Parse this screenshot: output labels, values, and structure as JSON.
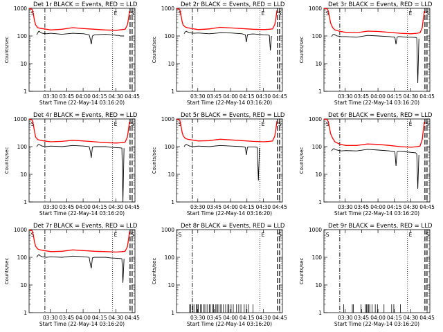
{
  "chart_data": [
    {
      "type": "line",
      "title": "Det 1r BLACK = Events, RED = LLD",
      "xlabel": "Start Time (22-May-14 03:16:20)",
      "ylabel": "Counts/sec",
      "xticks": [
        "03:30",
        "03:45",
        "04:00",
        "04:15",
        "04:30",
        "04:45"
      ],
      "yticks": [
        "1",
        "10",
        "100",
        "1000"
      ],
      "ylim": [
        1,
        1000
      ],
      "yscale": "log",
      "xlim_min": [
        0,
        97
      ],
      "markers": [
        {
          "label": "S",
          "x": 0.5
        },
        {
          "label": "E",
          "x": 76.5
        },
        {
          "label": "S",
          "x": 92.5
        }
      ],
      "series": [
        {
          "name": "RED = LLD",
          "color": "#ff0000",
          "x": [
            0,
            3,
            4,
            5,
            6,
            8,
            10,
            14,
            20,
            30,
            40,
            50,
            60,
            70,
            80,
            85,
            88,
            90,
            91,
            92
          ],
          "y": [
            1000,
            900,
            600,
            350,
            250,
            200,
            190,
            180,
            165,
            175,
            200,
            185,
            175,
            165,
            160,
            170,
            175,
            250,
            400,
            800
          ]
        },
        {
          "name": "BLACK = Events",
          "color": "#000000",
          "x": [
            7,
            8,
            9,
            10,
            12,
            16,
            20,
            30,
            40,
            50,
            55,
            56,
            57,
            58,
            60,
            70,
            75,
            78,
            80,
            82,
            83,
            84,
            85,
            86,
            87
          ],
          "y": [
            110,
            130,
            150,
            140,
            125,
            120,
            125,
            115,
            125,
            120,
            110,
            80,
            50,
            100,
            110,
            115,
            110,
            108,
            105,
            105,
            102,
            100,
            100,
            100,
            100
          ]
        }
      ]
    },
    {
      "type": "line",
      "title": "Det 2r BLACK = Events, RED = LLD",
      "xlabel": "Start Time (22-May-14 03:16:20)",
      "ylabel": "Counts/sec",
      "xticks": [
        "03:30",
        "03:45",
        "04:00",
        "04:15",
        "04:30",
        "04:45"
      ],
      "yticks": [
        "1",
        "10",
        "100",
        "1000"
      ],
      "ylim": [
        1,
        1000
      ],
      "yscale": "log",
      "xlim_min": [
        0,
        97
      ],
      "markers": [
        {
          "label": "S",
          "x": 0.5
        },
        {
          "label": "E",
          "x": 76.5
        },
        {
          "label": "S",
          "x": 92.5
        }
      ],
      "series": [
        {
          "name": "RED = LLD",
          "color": "#ff0000",
          "x": [
            0,
            3,
            4,
            5,
            6,
            8,
            10,
            14,
            20,
            30,
            40,
            50,
            60,
            70,
            80,
            85,
            88,
            90,
            91,
            92
          ],
          "y": [
            1000,
            900,
            600,
            350,
            250,
            210,
            200,
            185,
            170,
            180,
            205,
            195,
            185,
            175,
            170,
            175,
            180,
            260,
            420,
            850
          ]
        },
        {
          "name": "BLACK = Events",
          "color": "#000000",
          "x": [
            7,
            8,
            9,
            10,
            12,
            16,
            20,
            30,
            40,
            50,
            60,
            63,
            64,
            65,
            66,
            70,
            75,
            80,
            84,
            85,
            86,
            87
          ],
          "y": [
            120,
            140,
            150,
            140,
            130,
            125,
            128,
            120,
            130,
            128,
            120,
            110,
            60,
            110,
            115,
            118,
            115,
            110,
            108,
            105,
            30,
            100
          ]
        }
      ]
    },
    {
      "type": "line",
      "title": "Det 3r BLACK = Events, RED = LLD",
      "xlabel": "Start Time (22-May-14 03:16:20)",
      "ylabel": "Counts/sec",
      "xticks": [
        "03:30",
        "03:45",
        "04:00",
        "04:15",
        "04:30",
        "04:45"
      ],
      "yticks": [
        "1",
        "10",
        "100",
        "1000"
      ],
      "ylim": [
        1,
        1000
      ],
      "yscale": "log",
      "xlim_min": [
        0,
        97
      ],
      "markers": [
        {
          "label": "S",
          "x": 0.5
        },
        {
          "label": "E",
          "x": 76.5
        },
        {
          "label": "S",
          "x": 92.5
        }
      ],
      "series": [
        {
          "name": "RED = LLD",
          "color": "#ff0000",
          "x": [
            0,
            3,
            4,
            5,
            6,
            8,
            10,
            14,
            20,
            30,
            40,
            50,
            60,
            70,
            80,
            85,
            88,
            90,
            91,
            92
          ],
          "y": [
            1000,
            950,
            800,
            500,
            300,
            200,
            165,
            150,
            135,
            130,
            150,
            145,
            135,
            125,
            120,
            125,
            130,
            200,
            400,
            800
          ]
        },
        {
          "name": "BLACK = Events",
          "color": "#000000",
          "x": [
            7,
            8,
            9,
            10,
            12,
            16,
            20,
            30,
            40,
            50,
            60,
            65,
            66,
            67,
            68,
            70,
            75,
            80,
            84,
            85,
            86,
            87
          ],
          "y": [
            95,
            110,
            115,
            110,
            100,
            95,
            95,
            90,
            105,
            100,
            95,
            90,
            50,
            90,
            95,
            95,
            90,
            90,
            88,
            85,
            2,
            80
          ]
        }
      ]
    },
    {
      "type": "line",
      "title": "Det 4r BLACK = Events, RED = LLD",
      "xlabel": "Start Time (22-May-14 03:16:20)",
      "ylabel": "Counts/sec",
      "xticks": [
        "03:30",
        "03:45",
        "04:00",
        "04:15",
        "04:30",
        "04:45"
      ],
      "yticks": [
        "1",
        "10",
        "100",
        "1000"
      ],
      "ylim": [
        1,
        1000
      ],
      "yscale": "log",
      "xlim_min": [
        0,
        97
      ],
      "markers": [
        {
          "label": "S",
          "x": 0.5
        },
        {
          "label": "E",
          "x": 76.5
        },
        {
          "label": "S",
          "x": 92.5
        }
      ],
      "series": [
        {
          "name": "RED = LLD",
          "color": "#ff0000",
          "x": [
            0,
            3,
            4,
            5,
            6,
            8,
            10,
            14,
            20,
            30,
            40,
            50,
            60,
            70,
            80,
            85,
            88,
            90,
            91,
            92
          ],
          "y": [
            1000,
            900,
            600,
            350,
            220,
            180,
            170,
            160,
            150,
            155,
            170,
            160,
            150,
            140,
            135,
            140,
            145,
            220,
            400,
            800
          ]
        },
        {
          "name": "BLACK = Events",
          "color": "#000000",
          "x": [
            7,
            8,
            9,
            10,
            12,
            16,
            20,
            30,
            40,
            50,
            55,
            56,
            57,
            58,
            60,
            70,
            75,
            80,
            84,
            85,
            86,
            87
          ],
          "y": [
            100,
            115,
            120,
            115,
            105,
            100,
            105,
            100,
            110,
            105,
            100,
            70,
            40,
            95,
            100,
            100,
            95,
            92,
            90,
            88,
            1,
            88
          ]
        }
      ]
    },
    {
      "type": "line",
      "title": "Det 5r BLACK = Events, RED = LLD",
      "xlabel": "Start Time (22-May-14 03:16:20)",
      "ylabel": "Counts/sec",
      "xticks": [
        "03:30",
        "03:45",
        "04:00",
        "04:15",
        "04:30",
        "04:45"
      ],
      "yticks": [
        "1",
        "10",
        "100",
        "1000"
      ],
      "ylim": [
        1,
        1000
      ],
      "yscale": "log",
      "xlim_min": [
        0,
        97
      ],
      "markers": [
        {
          "label": "S",
          "x": 0.5
        },
        {
          "label": "E",
          "x": 76.5
        },
        {
          "label": "S",
          "x": 92.5
        }
      ],
      "series": [
        {
          "name": "RED = LLD",
          "color": "#ff0000",
          "x": [
            0,
            3,
            4,
            5,
            6,
            8,
            10,
            14,
            20,
            30,
            40,
            50,
            60,
            70,
            80,
            85,
            88,
            90,
            91,
            92
          ],
          "y": [
            1000,
            900,
            600,
            350,
            250,
            200,
            185,
            175,
            160,
            165,
            185,
            175,
            165,
            155,
            150,
            155,
            160,
            240,
            420,
            850
          ]
        },
        {
          "name": "BLACK = Events",
          "color": "#000000",
          "x": [
            7,
            8,
            9,
            10,
            12,
            16,
            20,
            30,
            40,
            50,
            60,
            63,
            64,
            65,
            66,
            70,
            74,
            75,
            76
          ],
          "y": [
            100,
            115,
            120,
            115,
            105,
            100,
            105,
            100,
            110,
            105,
            100,
            95,
            50,
            95,
            98,
            98,
            95,
            6,
            90
          ]
        }
      ]
    },
    {
      "type": "line",
      "title": "Det 6r BLACK = Events, RED = LLD",
      "xlabel": "Start Time (22-May-14 03:16:20)",
      "ylabel": "Counts/sec",
      "xticks": [
        "03:30",
        "03:45",
        "04:00",
        "04:15",
        "04:30",
        "04:45"
      ],
      "yticks": [
        "1",
        "10",
        "100",
        "1000"
      ],
      "ylim": [
        1,
        1000
      ],
      "yscale": "log",
      "xlim_min": [
        0,
        97
      ],
      "markers": [
        {
          "label": "S",
          "x": 0.5
        },
        {
          "label": "E",
          "x": 76.5
        },
        {
          "label": "S",
          "x": 92.5
        }
      ],
      "series": [
        {
          "name": "RED = LLD",
          "color": "#ff0000",
          "x": [
            0,
            3,
            4,
            5,
            6,
            8,
            10,
            14,
            20,
            30,
            40,
            50,
            60,
            70,
            80,
            85,
            88,
            90,
            91,
            92
          ],
          "y": [
            1000,
            950,
            800,
            500,
            300,
            200,
            150,
            125,
            110,
            110,
            125,
            120,
            110,
            100,
            95,
            100,
            105,
            180,
            380,
            800
          ]
        },
        {
          "name": "BLACK = Events",
          "color": "#000000",
          "x": [
            7,
            8,
            9,
            10,
            12,
            16,
            20,
            30,
            40,
            50,
            60,
            65,
            66,
            67,
            68,
            70,
            75,
            80,
            84,
            85,
            86,
            87
          ],
          "y": [
            70,
            80,
            85,
            80,
            75,
            70,
            72,
            70,
            80,
            75,
            70,
            65,
            20,
            65,
            68,
            68,
            65,
            62,
            60,
            55,
            3,
            50
          ]
        }
      ]
    },
    {
      "type": "line",
      "title": "Det 7r BLACK = Events, RED = LLD",
      "xlabel": "Start Time (22-May-14 03:16:20)",
      "ylabel": "Counts/sec",
      "xticks": [
        "03:30",
        "03:45",
        "04:00",
        "04:15",
        "04:30",
        "04:45"
      ],
      "yticks": [
        "1",
        "10",
        "100",
        "1000"
      ],
      "ylim": [
        1,
        1000
      ],
      "yscale": "log",
      "xlim_min": [
        0,
        97
      ],
      "markers": [
        {
          "label": "S",
          "x": 0.5
        },
        {
          "label": "E",
          "x": 76.5
        },
        {
          "label": "S",
          "x": 92.5
        }
      ],
      "series": [
        {
          "name": "RED = LLD",
          "color": "#ff0000",
          "x": [
            0,
            3,
            4,
            5,
            6,
            8,
            10,
            14,
            20,
            30,
            40,
            50,
            60,
            70,
            80,
            85,
            88,
            90,
            91,
            92
          ],
          "y": [
            1000,
            900,
            600,
            350,
            250,
            200,
            185,
            175,
            160,
            165,
            185,
            175,
            165,
            160,
            155,
            160,
            165,
            240,
            420,
            850
          ]
        },
        {
          "name": "BLACK = Events",
          "color": "#000000",
          "x": [
            7,
            8,
            9,
            10,
            12,
            16,
            20,
            30,
            40,
            50,
            55,
            56,
            57,
            58,
            60,
            70,
            75,
            80,
            84,
            85,
            86,
            87
          ],
          "y": [
            100,
            115,
            125,
            115,
            105,
            100,
            105,
            100,
            110,
            105,
            100,
            60,
            40,
            95,
            100,
            100,
            95,
            92,
            90,
            88,
            12,
            88
          ]
        }
      ]
    },
    {
      "type": "line",
      "title": "Det 8r BLACK = Events, RED = LLD",
      "xlabel": "Start Time (22-May-14 03:16:20)",
      "ylabel": "Counts/sec",
      "xticks": [
        "03:30",
        "03:45",
        "04:00",
        "04:15",
        "04:30",
        "04:45"
      ],
      "yticks": [
        "1",
        "10",
        "100",
        "1000"
      ],
      "ylim": [
        1,
        1000
      ],
      "yscale": "log",
      "xlim_min": [
        0,
        97
      ],
      "markers": [
        {
          "label": "S",
          "x": 0.5
        },
        {
          "label": "E",
          "x": 76.5
        },
        {
          "label": "S",
          "x": 92.5
        }
      ],
      "spikes": {
        "color": "#000000",
        "value": 2,
        "x": [
          12,
          13,
          15,
          16,
          18,
          19,
          20,
          22,
          23,
          25,
          26,
          28,
          30,
          31,
          33,
          34,
          36,
          37,
          38,
          40,
          41,
          43,
          45,
          47,
          48,
          50,
          52,
          55,
          57,
          59,
          62,
          64,
          66,
          70
        ]
      },
      "series": []
    },
    {
      "type": "line",
      "title": "Det 9r BLACK = Events, RED = LLD",
      "xlabel": "Start Time (22-May-14 03:16:20)",
      "ylabel": "Counts/sec",
      "xticks": [
        "03:30",
        "03:45",
        "04:00",
        "04:15",
        "04:30",
        "04:45"
      ],
      "yticks": [
        "1",
        "10",
        "100",
        "1000"
      ],
      "ylim": [
        1,
        1000
      ],
      "yscale": "log",
      "xlim_min": [
        0,
        97
      ],
      "markers": [
        {
          "label": "S",
          "x": 0.5
        },
        {
          "label": "E",
          "x": 76.5
        },
        {
          "label": "S",
          "x": 92.5
        }
      ],
      "spikes": {
        "color": "#000000",
        "value": 2,
        "x": [
          18,
          26,
          27,
          34,
          38,
          39,
          40,
          41,
          42,
          44,
          47,
          49,
          55,
          62,
          64,
          70
        ]
      },
      "series": []
    }
  ]
}
